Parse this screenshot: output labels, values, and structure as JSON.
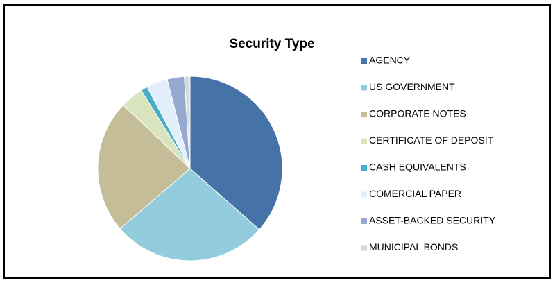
{
  "chart_data": {
    "type": "pie",
    "title": "Security Type",
    "categories": [
      "AGENCY",
      "US GOVERNMENT",
      "CORPORATE NOTES",
      "CERTIFICATE OF DEPOSIT",
      "CASH EQUIVALENTS",
      "COMERCIAL PAPER",
      "ASSET-BACKED SECURITY",
      "MUNICIPAL BONDS"
    ],
    "values": [
      36.5,
      27.2,
      23.4,
      4,
      1.2,
      3.7,
      3,
      1
    ],
    "colors": [
      "#4572a7",
      "#93cddd",
      "#c4bd97",
      "#d7e4bd",
      "#4bacc6",
      "#e2effa",
      "#95a9d1",
      "#d9d9d9"
    ],
    "legend": "right"
  }
}
